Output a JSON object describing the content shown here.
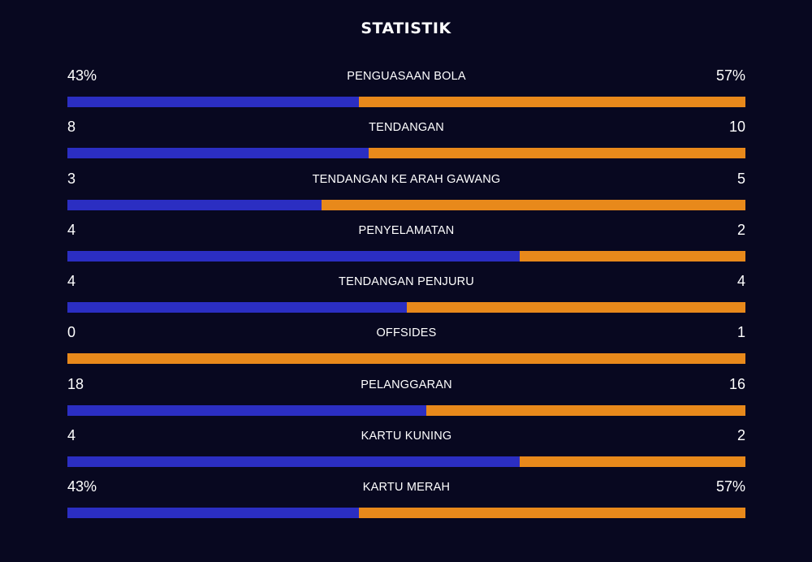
{
  "title": "STATISTIK",
  "colors": {
    "background": "#080820",
    "home": "#2b2ec2",
    "away": "#e8891b",
    "text": "#ffffff"
  },
  "stats": [
    {
      "label": "PENGUASAAN BOLA",
      "home": "43%",
      "away": "57%",
      "home_share": 0.43
    },
    {
      "label": "TENDANGAN",
      "home": "8",
      "away": "10",
      "home_share": 0.444
    },
    {
      "label": "TENDANGAN KE ARAH GAWANG",
      "home": "3",
      "away": "5",
      "home_share": 0.375
    },
    {
      "label": "PENYELAMATAN",
      "home": "4",
      "away": "2",
      "home_share": 0.667
    },
    {
      "label": "TENDANGAN PENJURU",
      "home": "4",
      "away": "4",
      "home_share": 0.5
    },
    {
      "label": "OFFSIDES",
      "home": "0",
      "away": "1",
      "home_share": 0
    },
    {
      "label": "PELANGGARAN",
      "home": "18",
      "away": "16",
      "home_share": 0.529
    },
    {
      "label": "KARTU KUNING",
      "home": "4",
      "away": "2",
      "home_share": 0.667
    },
    {
      "label": "KARTU MERAH",
      "home": "43%",
      "away": "57%",
      "home_share": 0.43
    }
  ]
}
